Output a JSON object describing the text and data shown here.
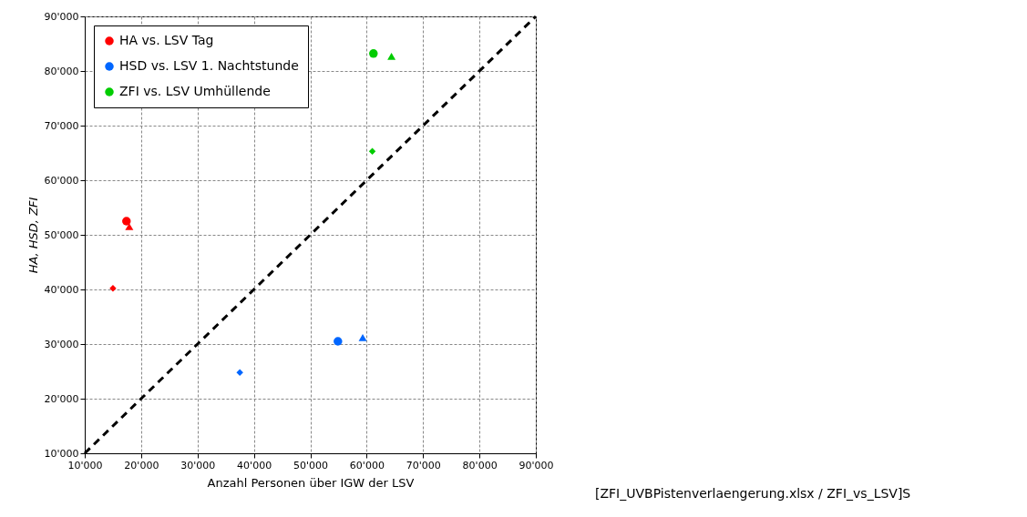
{
  "chart_data": {
    "type": "scatter",
    "xlabel": "Anzahl Personen über IGW der LSV",
    "ylabel": "HA, HSD, ZFI",
    "xlim": [
      10000,
      90000
    ],
    "ylim": [
      10000,
      90000
    ],
    "xticks": [
      {
        "value": 10000,
        "label": "10'000"
      },
      {
        "value": 20000,
        "label": "20'000"
      },
      {
        "value": 30000,
        "label": "30'000"
      },
      {
        "value": 40000,
        "label": "40'000"
      },
      {
        "value": 50000,
        "label": "50'000"
      },
      {
        "value": 60000,
        "label": "60'000"
      },
      {
        "value": 70000,
        "label": "70'000"
      },
      {
        "value": 80000,
        "label": "80'000"
      },
      {
        "value": 90000,
        "label": "90'000"
      }
    ],
    "yticks": [
      {
        "value": 10000,
        "label": "10'000"
      },
      {
        "value": 20000,
        "label": "20'000"
      },
      {
        "value": 30000,
        "label": "30'000"
      },
      {
        "value": 40000,
        "label": "40'000"
      },
      {
        "value": 50000,
        "label": "50'000"
      },
      {
        "value": 60000,
        "label": "60'000"
      },
      {
        "value": 70000,
        "label": "70'000"
      },
      {
        "value": 80000,
        "label": "80'000"
      },
      {
        "value": 90000,
        "label": "90'000"
      }
    ],
    "grid": true,
    "legend": "top left",
    "annotations": [
      "[ZFI_UVBPistenverlaengerung.xlsx / ZFI_vs_LSV]S"
    ],
    "series": [
      {
        "name": "HA vs. LSV Tag",
        "color": "#ff0000",
        "marker": "circle",
        "x": [
          17400
        ],
        "values": [
          52500
        ]
      },
      {
        "name": "HSD vs. LSV 1. Nachtstunde",
        "color": "#0066ff",
        "marker": "circle",
        "x": [
          54900
        ],
        "values": [
          30500
        ]
      },
      {
        "name": "ZFI vs. LSV Umhüllende",
        "color": "#00cc00",
        "marker": "circle",
        "x": [
          61200
        ],
        "values": [
          83200
        ]
      },
      {
        "color": "#ff0000",
        "marker": "triangle",
        "x": [
          17900
        ],
        "values": [
          51500
        ]
      },
      {
        "color": "#ff0000",
        "marker": "diamond",
        "x": [
          15000
        ],
        "values": [
          40200
        ]
      },
      {
        "color": "#0066ff",
        "marker": "triangle",
        "x": [
          59300
        ],
        "values": [
          31200
        ]
      },
      {
        "color": "#0066ff",
        "marker": "diamond",
        "x": [
          37500
        ],
        "values": [
          24800
        ]
      },
      {
        "color": "#00cc00",
        "marker": "triangle",
        "x": [
          64400
        ],
        "values": [
          82700
        ]
      },
      {
        "color": "#00cc00",
        "marker": "diamond",
        "x": [
          61000
        ],
        "values": [
          65300
        ]
      },
      {
        "type": "line",
        "color": "#000000",
        "line_style": "dashed",
        "marker": "none",
        "x": [
          10000,
          90000
        ],
        "values": [
          10000,
          90000
        ]
      }
    ]
  }
}
